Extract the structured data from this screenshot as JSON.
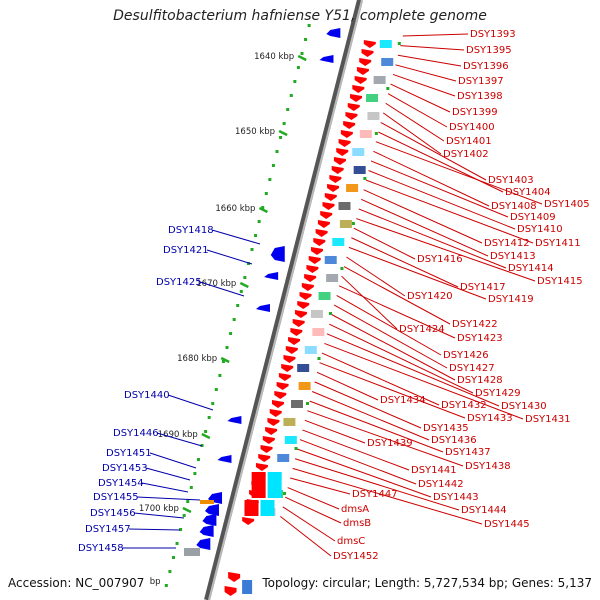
{
  "title": "Desulfitobacterium hafniense Y51, complete genome",
  "footer": {
    "accession": "Accession: NC_007907",
    "summary": "Topology: circular; Length: 5,727,534 bp; Genes: 5,137"
  },
  "colors": {
    "backbone": "#888888",
    "forward_gene": "#ff0000",
    "reverse_gene": "#0000ee",
    "tick": "#22aa22",
    "label_forward": "#cc0000",
    "label_reverse": "#0000aa"
  },
  "ruler_ticks": [
    "1640 kbp",
    "1650 kbp",
    "1660 kbp",
    "1670 kbp",
    "1680 kbp",
    "1690 kbp",
    "1700 kbp"
  ],
  "ruler_tail": "bp",
  "right_labels": [
    "DSY1393",
    "DSY1395",
    "DSY1396",
    "DSY1397",
    "DSY1398",
    "DSY1399",
    "DSY1400",
    "DSY1401",
    "DSY1402",
    "DSY1403",
    "DSY1404",
    "DSY1405",
    "DSY1408",
    "DSY1409",
    "DSY1410",
    "DSY1411",
    "DSY1412",
    "DSY1413",
    "DSY1414",
    "DSY1415",
    "DSY1416",
    "DSY1417",
    "DSY1419",
    "DSY1420",
    "DSY1422",
    "DSY1424",
    "DSY1423",
    "DSY1426",
    "DSY1427",
    "DSY1428",
    "DSY1429",
    "DSY1430",
    "DSY1431",
    "DSY1432",
    "DSY1433",
    "DSY1434",
    "DSY1435",
    "DSY1436",
    "DSY1437",
    "DSY1438",
    "DSY1439",
    "DSY1441",
    "DSY1442",
    "DSY1443",
    "DSY1444",
    "DSY1445",
    "DSY1447",
    "dmsA",
    "dmsB",
    "dmsC",
    "DSY1452"
  ],
  "left_labels": [
    "DSY1418",
    "DSY1421",
    "DSY1425",
    "DSY1440",
    "DSY1446",
    "DSY1451",
    "DSY1453",
    "DSY1454",
    "DSY1455",
    "DSY1456",
    "DSY1457",
    "DSY1458"
  ]
}
